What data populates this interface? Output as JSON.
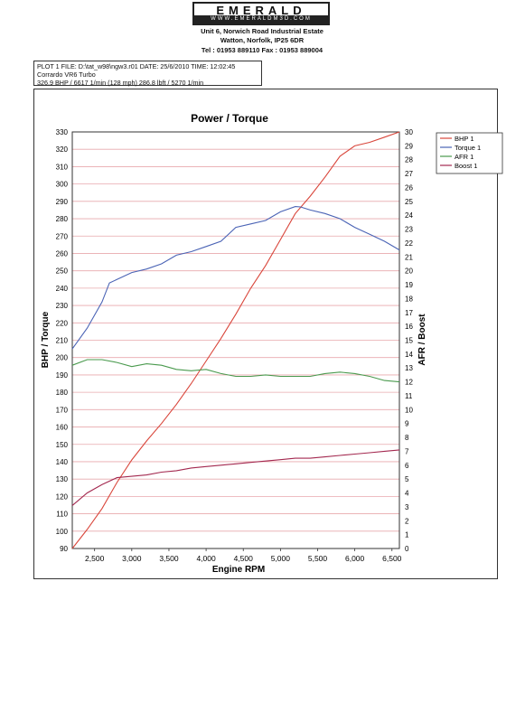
{
  "header": {
    "logo": "EMERALD",
    "logo_sub": "WWW.EMERALDM3D.COM",
    "address_line1": "Unit 6, Norwich Road Industrial Estate",
    "address_line2": "Watton, Norfolk, IP25 6DR",
    "contact": "Tel : 01953 889110   Fax : 01953 889004"
  },
  "plot_info": {
    "line1": "PLOT 1 FILE: D:\\tat_w98\\ngw3.r01  DATE: 25/6/2010  TIME: 12:02:45",
    "line2": "Corrardo VR6 Turbo",
    "line3": "326.9 BHP / 6617 1/min (128 mph)     286.8 lbft / 5270 1/min"
  },
  "chart_data": {
    "type": "line",
    "title": "Power / Torque",
    "xlabel": "Engine RPM",
    "ylabel": "BHP / Torque",
    "y2label": "AFR / Boost",
    "xlim": [
      2200,
      6600
    ],
    "ylim": [
      90,
      330
    ],
    "y2lim": [
      0,
      30
    ],
    "x_ticks": [
      2500,
      3000,
      3500,
      4000,
      4500,
      5000,
      5500,
      6000,
      6500
    ],
    "x_tick_labels": [
      "2,500",
      "3,000",
      "3,500",
      "4,000",
      "4,500",
      "5,000",
      "5,500",
      "6,000",
      "6,500"
    ],
    "y_ticks": [
      90,
      100,
      110,
      120,
      130,
      140,
      150,
      160,
      170,
      180,
      190,
      200,
      210,
      220,
      230,
      240,
      250,
      260,
      270,
      280,
      290,
      300,
      310,
      320,
      330
    ],
    "y2_ticks": [
      0,
      1,
      2,
      3,
      4,
      5,
      6,
      7,
      8,
      9,
      10,
      11,
      12,
      13,
      14,
      15,
      16,
      17,
      18,
      19,
      20,
      21,
      22,
      23,
      24,
      25,
      26,
      27,
      28,
      29,
      30
    ],
    "grid": "horizontal",
    "legend_position": "right",
    "series": [
      {
        "name": "BHP 1",
        "axis": "left",
        "color": "#d9463b",
        "x": [
          2200,
          2400,
          2600,
          2800,
          3000,
          3200,
          3400,
          3600,
          3800,
          4000,
          4200,
          4400,
          4600,
          4800,
          5000,
          5200,
          5400,
          5600,
          5800,
          6000,
          6200,
          6400,
          6600
        ],
        "y": [
          90,
          101,
          113,
          128,
          141,
          152,
          162,
          173,
          185,
          198,
          211,
          225,
          240,
          253,
          268,
          283,
          293,
          304,
          316,
          322,
          324,
          327,
          330
        ]
      },
      {
        "name": "Torque 1",
        "axis": "left",
        "color": "#4a63b5",
        "x": [
          2200,
          2400,
          2600,
          2700,
          2800,
          3000,
          3200,
          3400,
          3600,
          3800,
          4000,
          4200,
          4400,
          4600,
          4800,
          5000,
          5200,
          5270,
          5400,
          5600,
          5800,
          6000,
          6200,
          6400,
          6600
        ],
        "y": [
          205,
          217,
          232,
          243,
          245,
          249,
          251,
          254,
          259,
          261,
          264,
          267,
          275,
          277,
          279,
          284,
          287,
          286.8,
          285,
          283,
          280,
          275,
          271,
          267,
          262
        ]
      },
      {
        "name": "AFR 1",
        "axis": "right",
        "color": "#4a9a4e",
        "x": [
          2200,
          2400,
          2600,
          2800,
          3000,
          3200,
          3400,
          3600,
          3800,
          4000,
          4200,
          4400,
          4600,
          4800,
          5000,
          5200,
          5400,
          5600,
          5800,
          6000,
          6200,
          6400,
          6600
        ],
        "y": [
          13.2,
          13.6,
          13.6,
          13.4,
          13.1,
          13.3,
          13.2,
          12.9,
          12.8,
          12.9,
          12.6,
          12.4,
          12.4,
          12.5,
          12.4,
          12.4,
          12.4,
          12.6,
          12.7,
          12.6,
          12.4,
          12.1,
          12.0
        ]
      },
      {
        "name": "Boost 1",
        "axis": "right",
        "color": "#a3284f",
        "x": [
          2200,
          2400,
          2600,
          2800,
          3000,
          3200,
          3400,
          3600,
          3800,
          4000,
          4200,
          4400,
          4600,
          4800,
          5000,
          5200,
          5400,
          5600,
          5800,
          6000,
          6200,
          6400,
          6600
        ],
        "y": [
          3.1,
          4.0,
          4.6,
          5.1,
          5.2,
          5.3,
          5.5,
          5.6,
          5.8,
          5.9,
          6.0,
          6.1,
          6.2,
          6.3,
          6.4,
          6.5,
          6.5,
          6.6,
          6.7,
          6.8,
          6.9,
          7.0,
          7.1
        ]
      }
    ]
  }
}
